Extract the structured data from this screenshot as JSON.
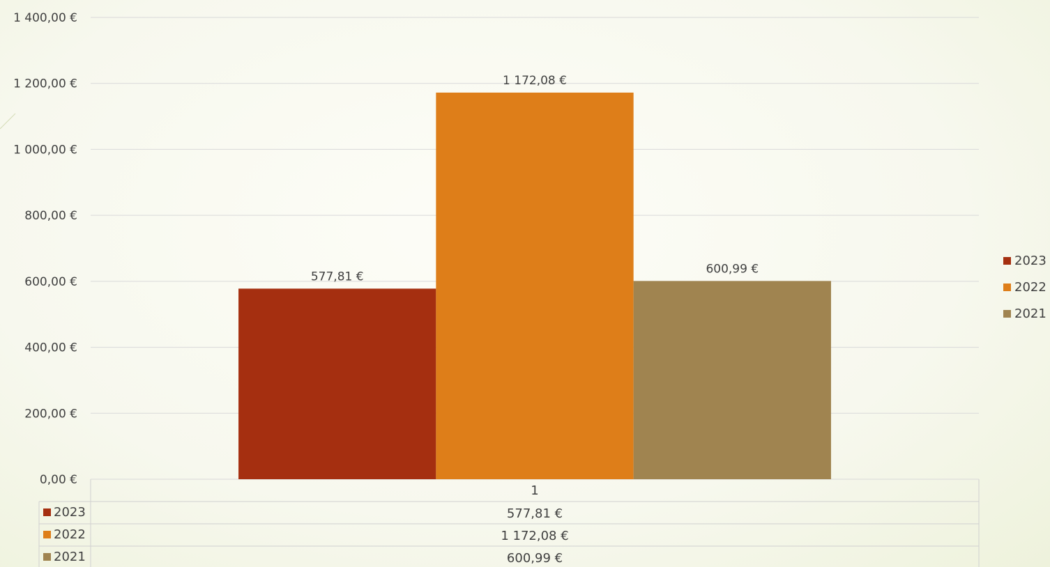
{
  "chart_data": {
    "type": "bar",
    "categories": [
      "1"
    ],
    "series": [
      {
        "name": "2023",
        "values": [
          577.81
        ],
        "label": "577,81 €",
        "color": "#a52f10"
      },
      {
        "name": "2022",
        "values": [
          1172.08
        ],
        "label": "1 172,08 €",
        "color": "#de7e19"
      },
      {
        "name": "2021",
        "values": [
          600.99
        ],
        "label": "600,99 €",
        "color": "#a08450"
      }
    ],
    "ylim": [
      0,
      1400
    ],
    "y_ticks": [
      0,
      200,
      400,
      600,
      800,
      1000,
      1200,
      1400
    ],
    "y_tick_labels": [
      "0,00 €",
      "200,00 €",
      "400,00 €",
      "600,00 €",
      "800,00 €",
      "1 000,00 €",
      "1 200,00 €",
      "1 400,00 €"
    ],
    "grid": true,
    "legend": "right",
    "data_table": true,
    "title": "",
    "xlabel": "",
    "ylabel": ""
  }
}
